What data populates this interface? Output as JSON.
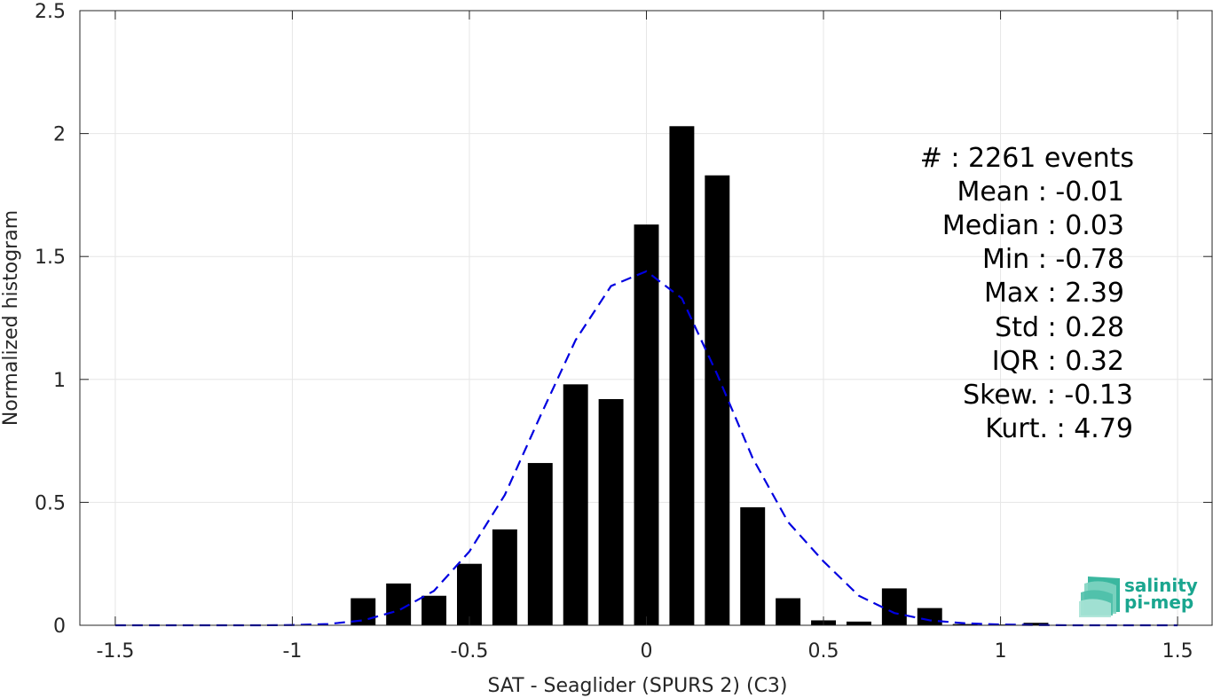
{
  "chart_data": {
    "type": "bar",
    "title": "",
    "xlabel": "SAT - Seaglider (SPURS 2) (C3)",
    "ylabel": "Normalized histogram",
    "xlim": [
      -1.6,
      1.6
    ],
    "ylim": [
      0,
      2.5
    ],
    "xticks": [
      -1.5,
      -1,
      -0.5,
      0,
      0.5,
      1,
      1.5
    ],
    "xtick_labels": [
      "-1.5",
      "-1",
      "-0.5",
      "0",
      "0.5",
      "1",
      "1.5"
    ],
    "yticks": [
      0,
      0.5,
      1,
      1.5,
      2,
      2.5
    ],
    "ytick_labels": [
      "0",
      "0.5",
      "1",
      "1.5",
      "2",
      "2.5"
    ],
    "grid": true,
    "bar_width": 0.07,
    "bars": {
      "x": [
        -0.8,
        -0.7,
        -0.6,
        -0.5,
        -0.4,
        -0.3,
        -0.2,
        -0.1,
        0.0,
        0.1,
        0.2,
        0.3,
        0.4,
        0.5,
        0.6,
        0.7,
        0.8,
        0.9,
        1.0,
        1.1,
        1.2,
        1.3,
        1.4,
        1.5
      ],
      "values": [
        0.11,
        0.17,
        0.12,
        0.25,
        0.39,
        0.66,
        0.98,
        0.92,
        1.63,
        2.03,
        1.83,
        0.48,
        0.11,
        0.02,
        0.015,
        0.15,
        0.07,
        0.005,
        0.003,
        0.01,
        0.002,
        0.002,
        0.002,
        0.002
      ],
      "color": "#000000"
    },
    "fit": {
      "style": "dashed",
      "color": "#0000e0",
      "x": [
        -1.5,
        -1.4,
        -1.3,
        -1.2,
        -1.1,
        -1.0,
        -0.9,
        -0.8,
        -0.7,
        -0.6,
        -0.5,
        -0.4,
        -0.3,
        -0.2,
        -0.1,
        0.0,
        0.1,
        0.2,
        0.3,
        0.4,
        0.5,
        0.6,
        0.7,
        0.8,
        0.9,
        1.0,
        1.1,
        1.2,
        1.3,
        1.4,
        1.5
      ],
      "y": [
        0.0,
        0.0,
        0.0,
        0.0,
        0.0,
        0.001,
        0.005,
        0.02,
        0.06,
        0.14,
        0.3,
        0.53,
        0.85,
        1.16,
        1.38,
        1.44,
        1.33,
        1.02,
        0.68,
        0.42,
        0.26,
        0.12,
        0.05,
        0.02,
        0.008,
        0.003,
        0.001,
        0.0,
        0.0,
        0.0,
        0.0
      ]
    },
    "stats_lines": [
      "#  : 2261 events",
      "Mean : -0.01",
      "Median : 0.03",
      "Min : -0.78",
      "Max : 2.39",
      "Std : 0.28",
      "IQR : 0.32",
      "Skew. : -0.13",
      "Kurt. : 4.79"
    ]
  },
  "logo": {
    "line1": "salinity",
    "line2": "pi-mep",
    "color": "#1aa68f"
  }
}
